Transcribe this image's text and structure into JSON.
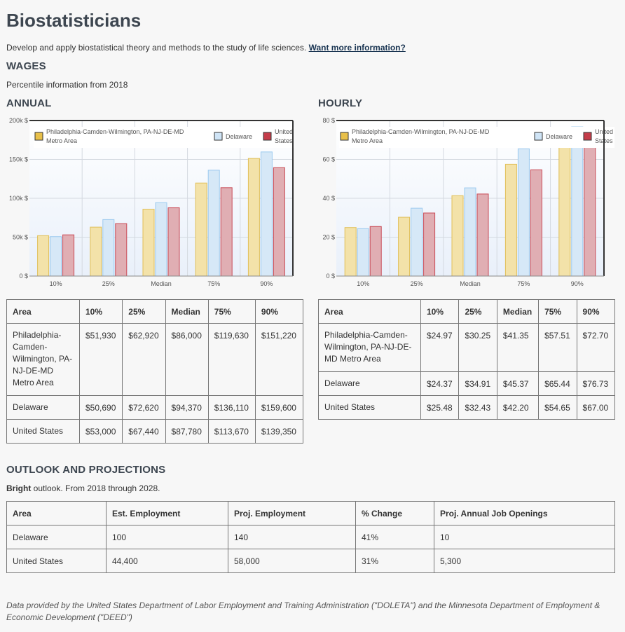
{
  "page": {
    "title": "Biostatisticians",
    "description": "Develop and apply biostatistical theory and methods to the study of life sciences.",
    "more_link": "Want more information?"
  },
  "wages": {
    "heading": "WAGES",
    "subtitle": "Percentile information from 2018",
    "annual_heading": "ANNUAL",
    "hourly_heading": "HOURLY",
    "columns": [
      "Area",
      "10%",
      "25%",
      "Median",
      "75%",
      "90%"
    ],
    "annual_rows": [
      {
        "area": "Philadelphia-Camden-Wilmington, PA-NJ-DE-MD Metro Area",
        "values": [
          "$51,930",
          "$62,920",
          "$86,000",
          "$119,630",
          "$151,220"
        ]
      },
      {
        "area": "Delaware",
        "values": [
          "$50,690",
          "$72,620",
          "$94,370",
          "$136,110",
          "$159,600"
        ]
      },
      {
        "area": "United States",
        "values": [
          "$53,000",
          "$67,440",
          "$87,780",
          "$113,670",
          "$139,350"
        ]
      }
    ],
    "hourly_rows": [
      {
        "area": "Philadelphia-Camden-Wilmington, PA-NJ-DE-MD Metro Area",
        "values": [
          "$24.97",
          "$30.25",
          "$41.35",
          "$57.51",
          "$72.70"
        ]
      },
      {
        "area": "Delaware",
        "values": [
          "$24.37",
          "$34.91",
          "$45.37",
          "$65.44",
          "$76.73"
        ]
      },
      {
        "area": "United States",
        "values": [
          "$25.48",
          "$32.43",
          "$42.20",
          "$54.65",
          "$67.00"
        ]
      }
    ]
  },
  "chart_data": [
    {
      "type": "bar",
      "categories": [
        "10%",
        "25%",
        "Median",
        "75%",
        "90%"
      ],
      "ylim": [
        0,
        200000
      ],
      "yticks": [
        "0 $",
        "50k $",
        "100k $",
        "150k $",
        "200k $"
      ],
      "legend_position": "top",
      "series": [
        {
          "name": "Philadelphia-Camden-Wilmington, PA-NJ-DE-MD Metro Area",
          "values": [
            51930,
            62920,
            86000,
            119630,
            151220
          ],
          "fill": "#f3e2a9",
          "stroke": "#e0bf58",
          "swatch": "#e8c04a"
        },
        {
          "name": "Delaware",
          "values": [
            50690,
            72620,
            94370,
            136110,
            159600
          ],
          "fill": "#d6e8f7",
          "stroke": "#9ccaef",
          "swatch": "#cfe4f6"
        },
        {
          "name": "United States",
          "values": [
            53000,
            67440,
            87780,
            113670,
            139350
          ],
          "fill": "#e0aeb3",
          "stroke": "#c94a56",
          "swatch": "#c43d4a"
        }
      ]
    },
    {
      "type": "bar",
      "categories": [
        "10%",
        "25%",
        "Median",
        "75%",
        "90%"
      ],
      "ylim": [
        0,
        80
      ],
      "yticks": [
        "0 $",
        "20 $",
        "40 $",
        "60 $",
        "80 $"
      ],
      "legend_position": "top",
      "series": [
        {
          "name": "Philadelphia-Camden-Wilmington, PA-NJ-DE-MD Metro Area",
          "values": [
            24.97,
            30.25,
            41.35,
            57.51,
            72.7
          ],
          "fill": "#f3e2a9",
          "stroke": "#e0bf58",
          "swatch": "#e8c04a"
        },
        {
          "name": "Delaware",
          "values": [
            24.37,
            34.91,
            45.37,
            65.44,
            76.73
          ],
          "fill": "#d6e8f7",
          "stroke": "#9ccaef",
          "swatch": "#cfe4f6"
        },
        {
          "name": "United States",
          "values": [
            25.48,
            32.43,
            42.2,
            54.65,
            67.0
          ],
          "fill": "#e0aeb3",
          "stroke": "#c94a56",
          "swatch": "#c43d4a"
        }
      ]
    }
  ],
  "outlook": {
    "heading": "OUTLOOK AND PROJECTIONS",
    "bright": "Bright",
    "text": " outlook. From 2018 through 2028.",
    "columns": [
      "Area",
      "Est. Employment",
      "Proj. Employment",
      "% Change",
      "Proj. Annual Job Openings"
    ],
    "rows": [
      [
        "Delaware",
        "100",
        "140",
        "41%",
        "10"
      ],
      [
        "United States",
        "44,400",
        "58,000",
        "31%",
        "5,300"
      ]
    ]
  },
  "footer": "Data provided by the United States Department of Labor Employment and Training Administration (\"DOLETA\") and the Minnesota Department of Employment & Economic Development (\"DEED\")"
}
